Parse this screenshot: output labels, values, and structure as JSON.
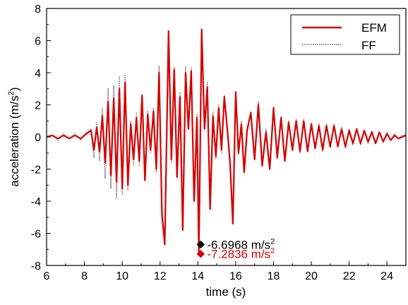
{
  "chart_data": {
    "type": "line",
    "xlabel": "time (s)",
    "ylabel_main": "acceleration (m/s",
    "ylabel_sup": "2",
    "ylabel_close": ")",
    "xlim": [
      6,
      25
    ],
    "ylim": [
      -8,
      8
    ],
    "x_ticks": [
      6,
      8,
      10,
      12,
      14,
      16,
      18,
      20,
      22,
      24
    ],
    "y_ticks": [
      -8,
      -6,
      -4,
      -2,
      0,
      2,
      4,
      6,
      8
    ],
    "legend_position": "top-right",
    "grid": false,
    "series": [
      {
        "name": "EFM",
        "color": "#d40000",
        "style": "solid",
        "x": [
          6.0,
          6.3,
          6.6,
          6.9,
          7.2,
          7.5,
          7.8,
          8.1,
          8.35,
          8.5,
          8.65,
          8.8,
          8.95,
          9.1,
          9.25,
          9.4,
          9.55,
          9.7,
          9.85,
          10.0,
          10.15,
          10.3,
          10.45,
          10.6,
          10.75,
          10.9,
          11.05,
          11.2,
          11.35,
          11.5,
          11.65,
          11.8,
          11.95,
          12.1,
          12.25,
          12.45,
          12.6,
          12.75,
          12.9,
          13.05,
          13.2,
          13.35,
          13.5,
          13.65,
          13.8,
          13.95,
          14.05,
          14.2,
          14.35,
          14.5,
          14.65,
          14.8,
          14.95,
          15.1,
          15.25,
          15.4,
          15.55,
          15.7,
          15.85,
          16.0,
          16.15,
          16.3,
          16.45,
          16.6,
          16.8,
          17.0,
          17.2,
          17.4,
          17.6,
          17.8,
          18.0,
          18.2,
          18.4,
          18.6,
          18.8,
          19.0,
          19.2,
          19.4,
          19.6,
          19.8,
          20.0,
          20.2,
          20.4,
          20.6,
          20.8,
          21.0,
          21.2,
          21.4,
          21.6,
          21.8,
          22.0,
          22.2,
          22.4,
          22.6,
          22.8,
          23.0,
          23.2,
          23.4,
          23.6,
          23.8,
          24.0,
          24.2,
          24.4,
          24.6,
          24.8,
          25.0
        ],
        "y": [
          0.0,
          0.1,
          -0.1,
          0.1,
          -0.1,
          0.1,
          -0.1,
          0.2,
          0.4,
          -0.8,
          0.6,
          -0.9,
          1.3,
          -1.6,
          2.2,
          -2.4,
          2.4,
          -2.8,
          3.0,
          -3.2,
          3.4,
          -3.0,
          0.8,
          -1.4,
          1.2,
          -1.5,
          2.6,
          -2.7,
          1.4,
          -0.8,
          1.6,
          -2.0,
          4.0,
          -4.8,
          -6.7,
          6.6,
          -1.4,
          4.2,
          -2.5,
          2.5,
          -5.8,
          4.0,
          0.5,
          4.1,
          -4.0,
          1.2,
          -7.2836,
          6.7,
          0.5,
          3.1,
          -4.5,
          1.3,
          -1.2,
          1.8,
          -0.8,
          2.5,
          0.6,
          -1.6,
          -5.4,
          2.8,
          -1.0,
          0.8,
          -2.2,
          0.4,
          1.5,
          -1.4,
          2.0,
          -1.8,
          0.3,
          -2.0,
          1.8,
          -1.3,
          1.2,
          -1.5,
          0.9,
          -0.8,
          1.0,
          -0.9,
          1.0,
          -0.9,
          0.8,
          -0.7,
          0.7,
          -0.8,
          0.7,
          -0.6,
          0.7,
          -0.6,
          0.5,
          -0.6,
          0.4,
          -0.4,
          0.5,
          -0.4,
          0.4,
          -0.3,
          0.3,
          -0.4,
          0.3,
          -0.3,
          0.2,
          -0.2,
          0.1,
          -0.1,
          0.0,
          0.1
        ]
      },
      {
        "name": "FF",
        "color": "#888888",
        "style": "dotted",
        "x": [
          6.0,
          6.3,
          6.6,
          6.9,
          7.2,
          7.5,
          7.8,
          8.1,
          8.35,
          8.5,
          8.65,
          8.8,
          8.95,
          9.1,
          9.25,
          9.4,
          9.55,
          9.7,
          9.85,
          10.0,
          10.15,
          10.3,
          10.45,
          10.6,
          10.75,
          10.9,
          11.05,
          11.2,
          11.35,
          11.5,
          11.65,
          11.8,
          11.95,
          12.1,
          12.25,
          12.45,
          12.6,
          12.75,
          12.9,
          13.05,
          13.2,
          13.35,
          13.5,
          13.65,
          13.8,
          13.95,
          14.05,
          14.2,
          14.35,
          14.5,
          14.65,
          14.8,
          14.95,
          15.1,
          15.25,
          15.4,
          15.55,
          15.7,
          15.85,
          16.0,
          16.15,
          16.3,
          16.45,
          16.6,
          16.8,
          17.0,
          17.2,
          17.4,
          17.6,
          17.8,
          18.0,
          18.2,
          18.4,
          18.6,
          18.8,
          19.0,
          19.2,
          19.4,
          19.6,
          19.8,
          20.0,
          20.2,
          20.4,
          20.6,
          20.8,
          21.0,
          21.2,
          21.4,
          21.6,
          21.8,
          22.0,
          22.2,
          22.4,
          22.6,
          22.8,
          23.0,
          23.2,
          23.4,
          23.6,
          23.8,
          24.0,
          24.2,
          24.4,
          24.6,
          24.8,
          25.0
        ],
        "y": [
          0.0,
          0.1,
          -0.2,
          0.2,
          -0.1,
          0.2,
          -0.2,
          0.3,
          0.5,
          -1.3,
          0.9,
          -1.5,
          1.8,
          -2.6,
          3.0,
          -3.2,
          3.2,
          -3.8,
          3.8,
          -3.6,
          3.9,
          -3.3,
          1.0,
          -1.8,
          1.5,
          -1.8,
          2.5,
          -2.6,
          1.6,
          -1.0,
          1.8,
          -2.2,
          4.4,
          -4.5,
          -6.5,
          6.2,
          -1.6,
          4.4,
          -2.2,
          2.8,
          -5.5,
          4.4,
          0.7,
          4.3,
          -3.8,
          1.4,
          -6.6968,
          6.0,
          0.6,
          3.4,
          -4.2,
          1.6,
          -1.4,
          2.0,
          -1.0,
          2.6,
          0.7,
          -1.8,
          -5.1,
          2.6,
          -1.1,
          1.0,
          -2.0,
          0.5,
          1.6,
          -1.2,
          2.2,
          -1.7,
          0.5,
          -1.8,
          1.9,
          -1.2,
          1.3,
          -1.4,
          1.0,
          -0.9,
          1.1,
          -1.0,
          1.1,
          -0.8,
          0.9,
          -0.8,
          0.8,
          -0.9,
          0.8,
          -0.7,
          0.8,
          -0.6,
          0.6,
          -0.7,
          0.5,
          -0.5,
          0.5,
          -0.5,
          0.4,
          -0.4,
          0.4,
          -0.4,
          0.3,
          -0.3,
          0.3,
          -0.2,
          0.2,
          -0.1,
          0.1,
          0.1
        ]
      }
    ],
    "annotations": [
      {
        "x": 14.15,
        "y": -6.6968,
        "text": "-6.6968 m/s",
        "sup": "2",
        "color": "#000000",
        "marker": "diamond"
      },
      {
        "x": 14.15,
        "y": -7.2836,
        "text": "-7.2836 m/s",
        "sup": "2",
        "color": "#d40000",
        "marker": "diamond"
      }
    ]
  }
}
